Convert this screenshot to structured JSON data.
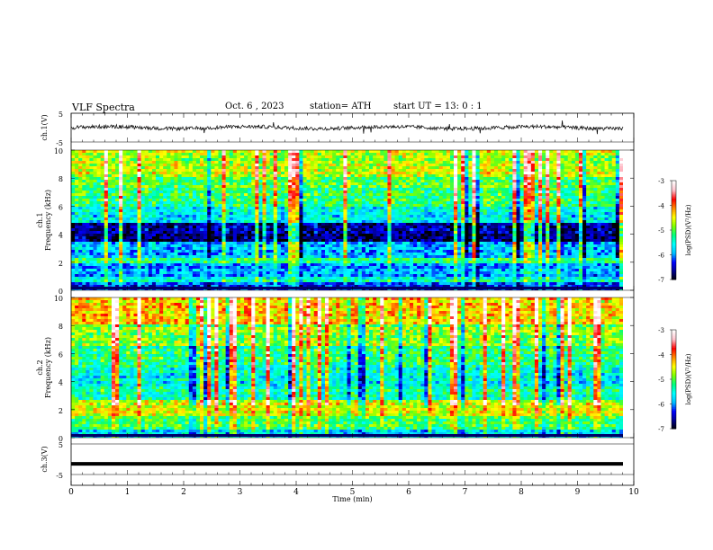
{
  "header": {
    "title": "VLF Spectra",
    "date": "Oct. 6 , 2023",
    "station": "station= ATH",
    "start": "start UT = 13: 0 : 1"
  },
  "colors": {
    "colormap": [
      "#000000",
      "#00008b",
      "#0000ff",
      "#00bfff",
      "#00ffff",
      "#00ff7f",
      "#7fff00",
      "#ffff00",
      "#ff8c00",
      "#ff0000",
      "#ffc0cb",
      "#ffffff"
    ]
  },
  "chart_data": [
    {
      "type": "line",
      "panel": "ch1-waveform",
      "ylabel": "ch.1(V)",
      "ylim": [
        -5,
        5
      ],
      "yticks": [
        "5",
        "-5"
      ],
      "x_range_min": [
        0,
        9.8
      ],
      "description_values": "noisy waveform centered near 0 V, amplitude about ±2 V"
    },
    {
      "type": "heatmap",
      "panel": "ch1-spectrogram",
      "ylabel": "ch.1\nFrequency (kHz)",
      "ylabel_line1": "ch.1",
      "ylabel_line2": "Frequency (kHz)",
      "ylim": [
        0,
        10
      ],
      "yticks": [
        "0",
        "2",
        "4",
        "6",
        "8",
        "10"
      ],
      "colorbar": {
        "label": "log(PSD)(V²/Hz)",
        "ticks": [
          "-3",
          "-4",
          "-5",
          "-6",
          "-7"
        ],
        "range": [
          -7,
          -3
        ]
      },
      "bands_khz": [
        {
          "from": 0.0,
          "to": 0.5,
          "level": -6.2
        },
        {
          "from": 0.5,
          "to": 1.0,
          "level": -5.5
        },
        {
          "from": 1.0,
          "to": 2.0,
          "level": -5.9
        },
        {
          "from": 2.0,
          "to": 2.4,
          "level": -5.1
        },
        {
          "from": 2.4,
          "to": 3.4,
          "level": -5.8
        },
        {
          "from": 3.4,
          "to": 4.9,
          "level": -6.6
        },
        {
          "from": 4.9,
          "to": 6.0,
          "level": -5.6
        },
        {
          "from": 6.0,
          "to": 8.0,
          "level": -5.1
        },
        {
          "from": 8.0,
          "to": 10.0,
          "level": -4.6
        }
      ]
    },
    {
      "type": "heatmap",
      "panel": "ch2-spectrogram",
      "ylabel_line1": "ch.2",
      "ylabel_line2": "Frequency (kHz)",
      "ylim": [
        0,
        10
      ],
      "yticks": [
        "0",
        "2",
        "4",
        "6",
        "8",
        "10"
      ],
      "colorbar": {
        "label": "log(PSD)(V²/Hz)",
        "ticks": [
          "-3",
          "-4",
          "-5",
          "-6",
          "-7"
        ],
        "range": [
          -7,
          -3
        ]
      },
      "bands_khz": [
        {
          "from": 0.0,
          "to": 0.5,
          "level": -5.8
        },
        {
          "from": 0.5,
          "to": 1.5,
          "level": -5.0
        },
        {
          "from": 1.5,
          "to": 2.6,
          "level": -4.6
        },
        {
          "from": 2.6,
          "to": 3.6,
          "level": -5.3
        },
        {
          "from": 3.6,
          "to": 5.0,
          "level": -5.5
        },
        {
          "from": 5.0,
          "to": 6.5,
          "level": -5.2
        },
        {
          "from": 6.5,
          "to": 8.0,
          "level": -4.8
        },
        {
          "from": 8.0,
          "to": 10.0,
          "level": -4.3
        }
      ]
    },
    {
      "type": "line",
      "panel": "ch3-waveform",
      "ylabel": "ch.3(V)",
      "ylim": [
        -5,
        5
      ],
      "yticks": [
        "5",
        "-5"
      ],
      "level_v": -1.5
    }
  ],
  "x_axis": {
    "label": "Time (min)",
    "range": [
      0,
      10
    ],
    "ticks": [
      "0",
      "1",
      "2",
      "3",
      "4",
      "5",
      "6",
      "7",
      "8",
      "9",
      "10"
    ]
  }
}
